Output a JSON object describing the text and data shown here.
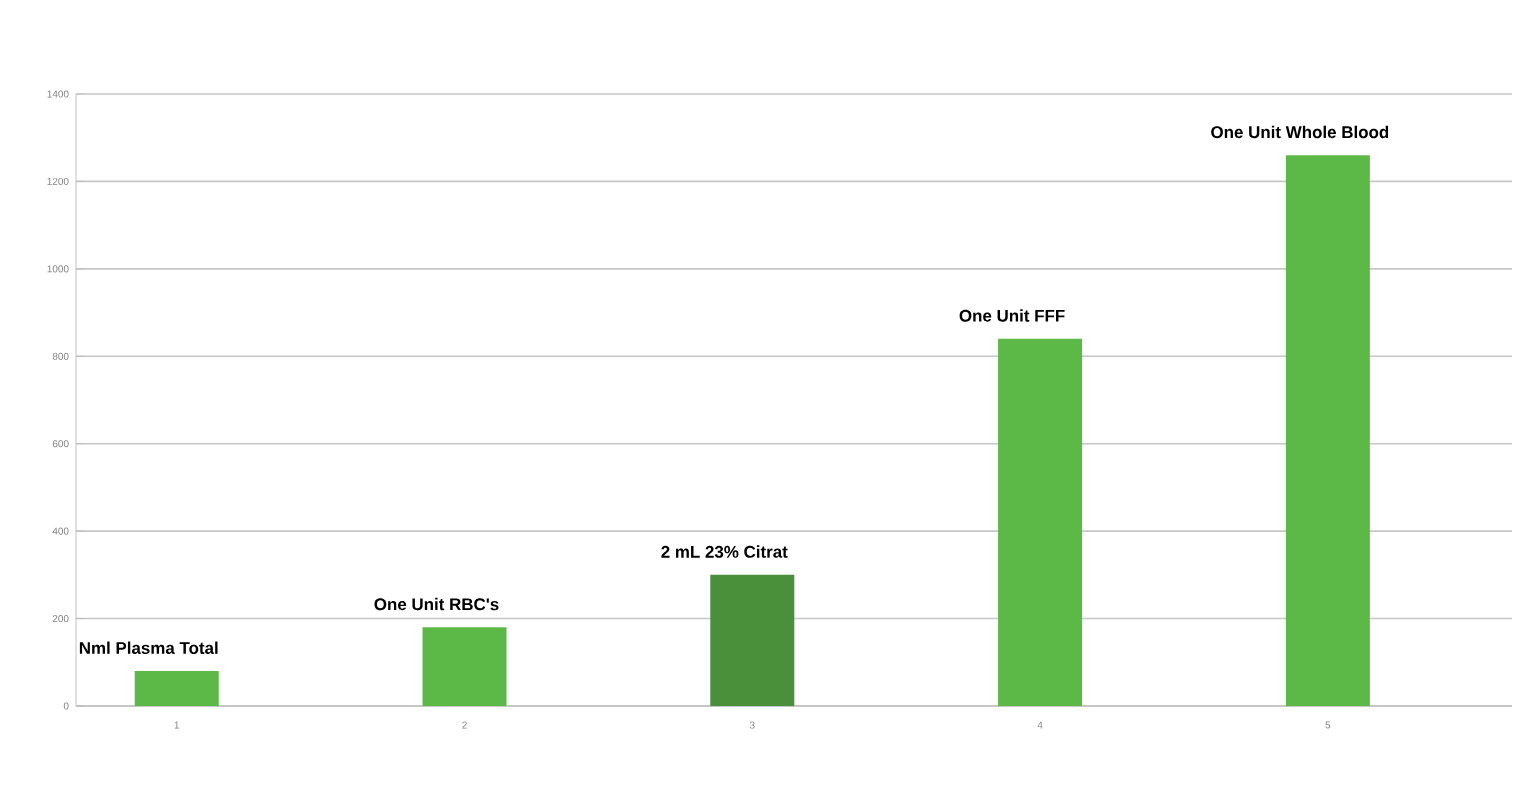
{
  "chart_data": {
    "type": "bar",
    "categories": [
      "1",
      "2",
      "3",
      "4",
      "5"
    ],
    "values": [
      80,
      180,
      300,
      840,
      1260
    ],
    "colors": [
      "#5cb947",
      "#5cb947",
      "#4a8f3a",
      "#5cb947",
      "#5cb947"
    ],
    "ylim": [
      0,
      1400
    ],
    "yticks": [
      0,
      200,
      400,
      600,
      800,
      1000,
      1200,
      1400
    ],
    "grid": "y",
    "annotations": [
      {
        "text": "Nml   Plasma   Total",
        "x": "1",
        "y": 80
      },
      {
        "text": "One   Unit   RBC's",
        "x": "2",
        "y": 180
      },
      {
        "text": "2   mL   23%   Citrat",
        "x": "3",
        "y": 300
      },
      {
        "text": "One   Unit   FFF",
        "x": "4",
        "y": 840
      },
      {
        "text": "One   Unit   Whole   Blood",
        "x": "5",
        "y": 1260
      }
    ]
  }
}
